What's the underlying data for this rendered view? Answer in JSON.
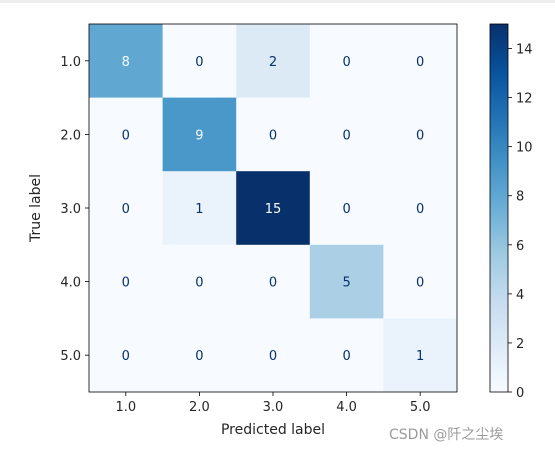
{
  "chart_data": {
    "type": "heatmap",
    "title": "",
    "xlabel": "Predicted label",
    "ylabel": "True label",
    "x_categories": [
      "1.0",
      "2.0",
      "3.0",
      "4.0",
      "5.0"
    ],
    "y_categories": [
      "1.0",
      "2.0",
      "3.0",
      "4.0",
      "5.0"
    ],
    "matrix": [
      [
        8,
        0,
        2,
        0,
        0
      ],
      [
        0,
        9,
        0,
        0,
        0
      ],
      [
        0,
        1,
        15,
        0,
        0
      ],
      [
        0,
        0,
        0,
        5,
        0
      ],
      [
        0,
        0,
        0,
        0,
        1
      ]
    ],
    "colormap": "Blues",
    "colorbar": {
      "range": [
        0,
        15
      ],
      "ticks": [
        "0",
        "2",
        "4",
        "6",
        "8",
        "10",
        "12",
        "14"
      ]
    },
    "text_colors": {
      "low": "#08306b",
      "high": "#f7fbff"
    }
  },
  "watermark": "CSDN @阡之尘埃"
}
